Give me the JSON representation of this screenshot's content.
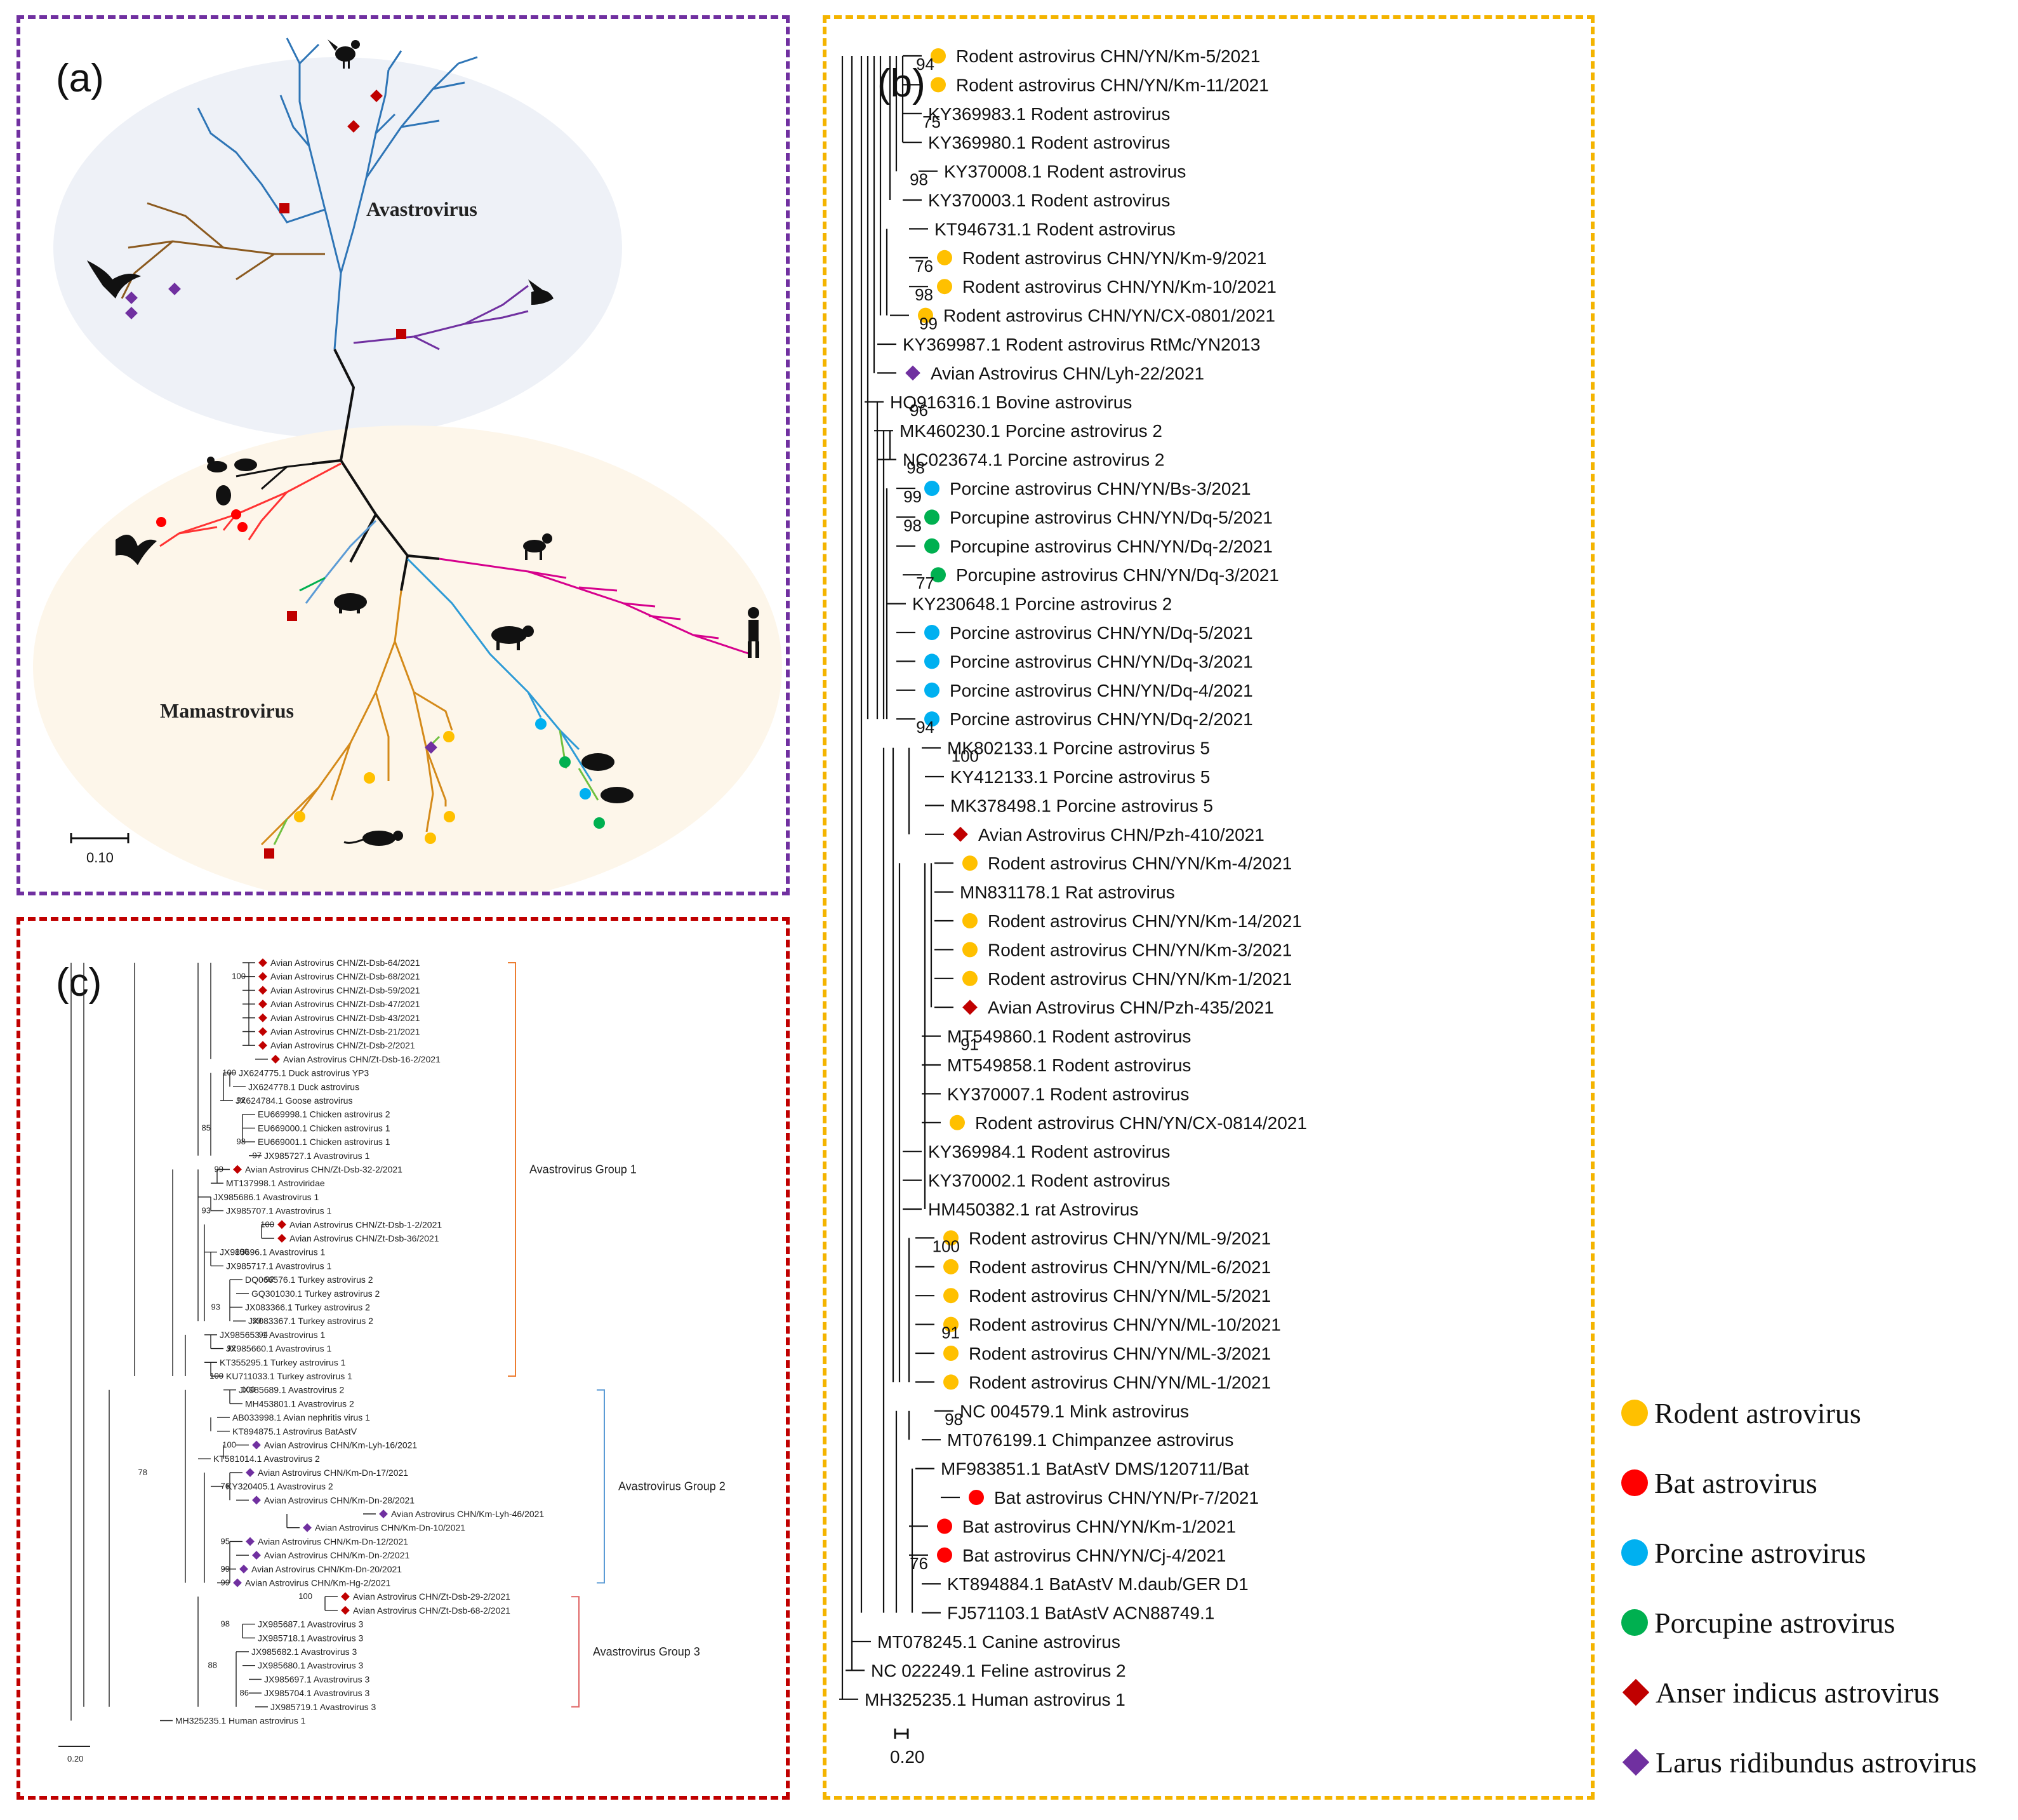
{
  "colors": {
    "rodent": "#ffc000",
    "bat": "#ff0000",
    "porcine": "#00b0f0",
    "porcupine": "#00b050",
    "anser": "#c00000",
    "larus": "#7030a0",
    "group1": "#ed7d31",
    "group2": "#5b9bd5",
    "group3": "#e06666"
  },
  "panel_a": {
    "label": "(a)",
    "avastrovirus": "Avastrovirus",
    "mamastrovirus": "Mamastrovirus",
    "scale": "0.10"
  },
  "panel_b": {
    "label": "(b)",
    "scale": "0.20",
    "leaves": [
      {
        "name": "Rodent astrovirus CHN/YN/Km-5/2021",
        "marker": "rodent"
      },
      {
        "name": "Rodent astrovirus CHN/YN/Km-11/2021",
        "marker": "rodent"
      },
      {
        "name": "KY369983.1 Rodent astrovirus",
        "marker": ""
      },
      {
        "name": "KY369980.1 Rodent astrovirus",
        "marker": ""
      },
      {
        "name": "KY370008.1 Rodent astrovirus",
        "marker": ""
      },
      {
        "name": "KY370003.1 Rodent astrovirus",
        "marker": ""
      },
      {
        "name": "KT946731.1 Rodent astrovirus",
        "marker": ""
      },
      {
        "name": "Rodent astrovirus CHN/YN/Km-9/2021",
        "marker": "rodent"
      },
      {
        "name": "Rodent astrovirus CHN/YN/Km-10/2021",
        "marker": "rodent"
      },
      {
        "name": "Rodent astrovirus CHN/YN/CX-0801/2021",
        "marker": "rodent"
      },
      {
        "name": "KY369987.1 Rodent astrovirus RtMc/YN2013",
        "marker": ""
      },
      {
        "name": "Avian Astrovirus CHN/Lyh-22/2021",
        "marker": "larus"
      },
      {
        "name": "HQ916316.1 Bovine astrovirus",
        "marker": ""
      },
      {
        "name": "MK460230.1 Porcine astrovirus 2",
        "marker": ""
      },
      {
        "name": "NC023674.1 Porcine astrovirus 2",
        "marker": ""
      },
      {
        "name": "Porcine astrovirus CHN/YN/Bs-3/2021",
        "marker": "porcine"
      },
      {
        "name": "Porcupine astrovirus CHN/YN/Dq-5/2021",
        "marker": "porcupine"
      },
      {
        "name": "Porcupine astrovirus CHN/YN/Dq-2/2021",
        "marker": "porcupine"
      },
      {
        "name": "Porcupine astrovirus CHN/YN/Dq-3/2021",
        "marker": "porcupine"
      },
      {
        "name": "KY230648.1 Porcine astrovirus 2",
        "marker": ""
      },
      {
        "name": "Porcine astrovirus CHN/YN/Dq-5/2021",
        "marker": "porcine"
      },
      {
        "name": "Porcine astrovirus CHN/YN/Dq-3/2021",
        "marker": "porcine"
      },
      {
        "name": "Porcine astrovirus CHN/YN/Dq-4/2021",
        "marker": "porcine"
      },
      {
        "name": "Porcine astrovirus CHN/YN/Dq-2/2021",
        "marker": "porcine"
      },
      {
        "name": "MK802133.1 Porcine astrovirus 5",
        "marker": ""
      },
      {
        "name": "KY412133.1 Porcine astrovirus 5",
        "marker": ""
      },
      {
        "name": "MK378498.1 Porcine astrovirus 5",
        "marker": ""
      },
      {
        "name": "Avian Astrovirus CHN/Pzh-410/2021",
        "marker": "anser"
      },
      {
        "name": "Rodent astrovirus CHN/YN/Km-4/2021",
        "marker": "rodent"
      },
      {
        "name": "MN831178.1 Rat astrovirus",
        "marker": ""
      },
      {
        "name": "Rodent astrovirus CHN/YN/Km-14/2021",
        "marker": "rodent"
      },
      {
        "name": "Rodent astrovirus CHN/YN/Km-3/2021",
        "marker": "rodent"
      },
      {
        "name": "Rodent astrovirus CHN/YN/Km-1/2021",
        "marker": "rodent"
      },
      {
        "name": "Avian Astrovirus CHN/Pzh-435/2021",
        "marker": "anser"
      },
      {
        "name": "MT549860.1 Rodent astrovirus",
        "marker": ""
      },
      {
        "name": "MT549858.1 Rodent astrovirus",
        "marker": ""
      },
      {
        "name": "KY370007.1 Rodent astrovirus",
        "marker": ""
      },
      {
        "name": "Rodent astrovirus CHN/YN/CX-0814/2021",
        "marker": "rodent"
      },
      {
        "name": "KY369984.1 Rodent astrovirus",
        "marker": ""
      },
      {
        "name": "KY370002.1 Rodent astrovirus",
        "marker": ""
      },
      {
        "name": "HM450382.1 rat Astrovirus",
        "marker": ""
      },
      {
        "name": "Rodent astrovirus CHN/YN/ML-9/2021",
        "marker": "rodent"
      },
      {
        "name": "Rodent astrovirus CHN/YN/ML-6/2021",
        "marker": "rodent"
      },
      {
        "name": "Rodent astrovirus CHN/YN/ML-5/2021",
        "marker": "rodent"
      },
      {
        "name": "Rodent astrovirus CHN/YN/ML-10/2021",
        "marker": "rodent"
      },
      {
        "name": "Rodent astrovirus CHN/YN/ML-3/2021",
        "marker": "rodent"
      },
      {
        "name": "Rodent astrovirus CHN/YN/ML-1/2021",
        "marker": "rodent"
      },
      {
        "name": "NC 004579.1 Mink astrovirus",
        "marker": ""
      },
      {
        "name": "MT076199.1 Chimpanzee astrovirus",
        "marker": ""
      },
      {
        "name": "MF983851.1 BatAstV DMS/120711/Bat",
        "marker": ""
      },
      {
        "name": "Bat astrovirus CHN/YN/Pr-7/2021",
        "marker": "bat"
      },
      {
        "name": "Bat astrovirus CHN/YN/Km-1/2021",
        "marker": "bat"
      },
      {
        "name": "Bat astrovirus CHN/YN/Cj-4/2021",
        "marker": "bat"
      },
      {
        "name": "KT894884.1 BatAstV M.daub/GER D1",
        "marker": ""
      },
      {
        "name": "FJ571103.1 BatAstV ACN88749.1",
        "marker": ""
      },
      {
        "name": "MT078245.1 Canine astrovirus",
        "marker": ""
      },
      {
        "name": "NC 022249.1 Feline astrovirus 2",
        "marker": ""
      },
      {
        "name": "MH325235.1 Human astrovirus 1",
        "marker": ""
      }
    ],
    "bootstraps": [
      "94",
      "75",
      "98",
      "76",
      "98",
      "99",
      "96",
      "98",
      "99",
      "98",
      "77",
      "94",
      "100",
      "91",
      "100",
      "91",
      "98",
      "76"
    ]
  },
  "panel_c": {
    "label": "(c)",
    "scale": "0.20",
    "groups": [
      "Avastrovirus Group 1",
      "Avastrovirus Group 2",
      "Avastrovirus Group 3"
    ],
    "leaves": [
      {
        "name": "Avian Astrovirus CHN/Zt-Dsb-64/2021",
        "marker": "anser"
      },
      {
        "name": "Avian Astrovirus CHN/Zt-Dsb-68/2021",
        "marker": "anser"
      },
      {
        "name": "Avian Astrovirus CHN/Zt-Dsb-59/2021",
        "marker": "anser"
      },
      {
        "name": "Avian Astrovirus CHN/Zt-Dsb-47/2021",
        "marker": "anser"
      },
      {
        "name": "Avian Astrovirus CHN/Zt-Dsb-43/2021",
        "marker": "anser"
      },
      {
        "name": "Avian Astrovirus CHN/Zt-Dsb-21/2021",
        "marker": "anser"
      },
      {
        "name": "Avian Astrovirus CHN/Zt-Dsb-2/2021",
        "marker": "anser"
      },
      {
        "name": "Avian Astrovirus CHN/Zt-Dsb-16-2/2021",
        "marker": "anser"
      },
      {
        "name": "JX624775.1 Duck astrovirus YP3",
        "marker": ""
      },
      {
        "name": "JX624778.1 Duck astrovirus",
        "marker": ""
      },
      {
        "name": "JX624784.1 Goose astrovirus",
        "marker": ""
      },
      {
        "name": "EU669998.1 Chicken astrovirus 2",
        "marker": ""
      },
      {
        "name": "EU669000.1 Chicken astrovirus 1",
        "marker": ""
      },
      {
        "name": "EU669001.1 Chicken astrovirus 1",
        "marker": ""
      },
      {
        "name": "JX985727.1 Avastrovirus 1",
        "marker": ""
      },
      {
        "name": "Avian Astrovirus CHN/Zt-Dsb-32-2/2021",
        "marker": "anser"
      },
      {
        "name": "MT137998.1 Astroviridae",
        "marker": ""
      },
      {
        "name": "JX985686.1 Avastrovirus 1",
        "marker": ""
      },
      {
        "name": "JX985707.1 Avastrovirus 1",
        "marker": ""
      },
      {
        "name": "Avian Astrovirus CHN/Zt-Dsb-1-2/2021",
        "marker": "anser"
      },
      {
        "name": "Avian Astrovirus CHN/Zt-Dsb-36/2021",
        "marker": "anser"
      },
      {
        "name": "JX985696.1 Avastrovirus 1",
        "marker": ""
      },
      {
        "name": "JX985717.1 Avastrovirus 1",
        "marker": ""
      },
      {
        "name": "DQ066576.1 Turkey astrovirus 2",
        "marker": ""
      },
      {
        "name": "GQ301030.1 Turkey astrovirus 2",
        "marker": ""
      },
      {
        "name": "JX083366.1 Turkey astrovirus 2",
        "marker": ""
      },
      {
        "name": "JX083367.1 Turkey astrovirus 2",
        "marker": ""
      },
      {
        "name": "JX985653.1 Avastrovirus 1",
        "marker": ""
      },
      {
        "name": "JX985660.1 Avastrovirus 1",
        "marker": ""
      },
      {
        "name": "KT355295.1 Turkey astrovirus 1",
        "marker": ""
      },
      {
        "name": "KU711033.1 Turkey astrovirus 1",
        "marker": ""
      },
      {
        "name": "JX985689.1 Avastrovirus 2",
        "marker": ""
      },
      {
        "name": "MH453801.1 Avastrovirus 2",
        "marker": ""
      },
      {
        "name": "AB033998.1 Avian nephritis virus 1",
        "marker": ""
      },
      {
        "name": "KT894875.1 Astrovirus BatAstV",
        "marker": ""
      },
      {
        "name": "Avian Astrovirus CHN/Km-Lyh-16/2021",
        "marker": "larus"
      },
      {
        "name": "KT581014.1 Avastrovirus 2",
        "marker": ""
      },
      {
        "name": "Avian Astrovirus CHN/Km-Dn-17/2021",
        "marker": "larus"
      },
      {
        "name": "KY320405.1 Avastrovirus 2",
        "marker": ""
      },
      {
        "name": "Avian Astrovirus CHN/Km-Dn-28/2021",
        "marker": "larus"
      },
      {
        "name": "Avian Astrovirus CHN/Km-Lyh-46/2021",
        "marker": "larus"
      },
      {
        "name": "Avian Astrovirus CHN/Km-Dn-10/2021",
        "marker": "larus"
      },
      {
        "name": "Avian Astrovirus CHN/Km-Dn-12/2021",
        "marker": "larus"
      },
      {
        "name": "Avian Astrovirus CHN/Km-Dn-2/2021",
        "marker": "larus"
      },
      {
        "name": "Avian Astrovirus CHN/Km-Dn-20/2021",
        "marker": "larus"
      },
      {
        "name": "Avian Astrovirus CHN/Km-Hg-2/2021",
        "marker": "larus"
      },
      {
        "name": "Avian Astrovirus CHN/Zt-Dsb-29-2/2021",
        "marker": "anser"
      },
      {
        "name": "Avian Astrovirus CHN/Zt-Dsb-68-2/2021",
        "marker": "anser"
      },
      {
        "name": "JX985687.1 Avastrovirus 3",
        "marker": ""
      },
      {
        "name": "JX985718.1 Avastrovirus 3",
        "marker": ""
      },
      {
        "name": "JX985682.1 Avastrovirus 3",
        "marker": ""
      },
      {
        "name": "JX985680.1 Avastrovirus 3",
        "marker": ""
      },
      {
        "name": "JX985697.1 Avastrovirus 3",
        "marker": ""
      },
      {
        "name": "JX985704.1 Avastrovirus 3",
        "marker": ""
      },
      {
        "name": "JX985719.1 Avastrovirus 3",
        "marker": ""
      },
      {
        "name": "MH325235.1 Human astrovirus 1",
        "marker": ""
      }
    ],
    "bootstraps": [
      "100",
      "100",
      "92",
      "85",
      "98",
      "97",
      "99",
      "93",
      "100",
      "100",
      "92",
      "93",
      "99",
      "94",
      "92",
      "100",
      "100",
      "100",
      "76",
      "78",
      "95",
      "99",
      "99",
      "100",
      "98",
      "88",
      "86"
    ]
  },
  "legend": [
    {
      "label": "Rodent astrovirus",
      "marker": "rodent"
    },
    {
      "label": "Bat astrovirus",
      "marker": "bat"
    },
    {
      "label": "Porcine astrovirus",
      "marker": "porcine"
    },
    {
      "label": "Porcupine astrovirus",
      "marker": "porcupine"
    },
    {
      "label": "Anser indicus astrovirus",
      "marker": "anser"
    },
    {
      "label": "Larus ridibundus astrovirus",
      "marker": "larus"
    }
  ]
}
